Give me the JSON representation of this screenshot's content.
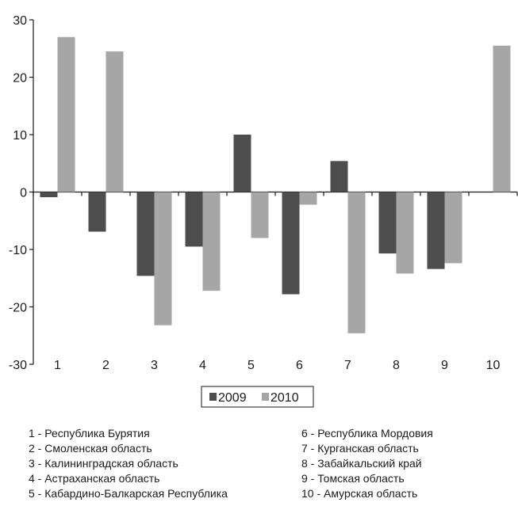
{
  "chart_data": {
    "type": "bar",
    "title": "",
    "xlabel": "",
    "ylabel": "",
    "ylim": [
      -30,
      30
    ],
    "yticks": [
      30,
      20,
      10,
      0,
      -10,
      -20,
      -30
    ],
    "categories": [
      "1",
      "2",
      "3",
      "4",
      "5",
      "6",
      "7",
      "8",
      "9",
      "10"
    ],
    "series": [
      {
        "name": "2009",
        "color": "#4d4d4d",
        "values": [
          -0.9,
          -6.9,
          -14.6,
          -9.5,
          10.0,
          -17.8,
          5.4,
          -10.7,
          -13.4,
          0
        ]
      },
      {
        "name": "2010",
        "color": "#a6a6a6",
        "values": [
          27.0,
          24.5,
          -23.2,
          -17.2,
          -8.0,
          -2.2,
          -24.6,
          -14.2,
          -12.4,
          25.5
        ]
      }
    ],
    "legend_position": "bottom-center",
    "grid": false
  },
  "notes": {
    "left": [
      "1 - Республика Бурятия",
      "2 - Смоленская область",
      "3 - Калининградская область",
      "4 - Астраханская область",
      "5 - Кабардино-Балкарская Республика"
    ],
    "right": [
      "6 - Республика Мордовия",
      "7 - Курганская область",
      "8 - Забайкальский край",
      "9 - Томская область",
      "10 - Амурская область"
    ]
  }
}
